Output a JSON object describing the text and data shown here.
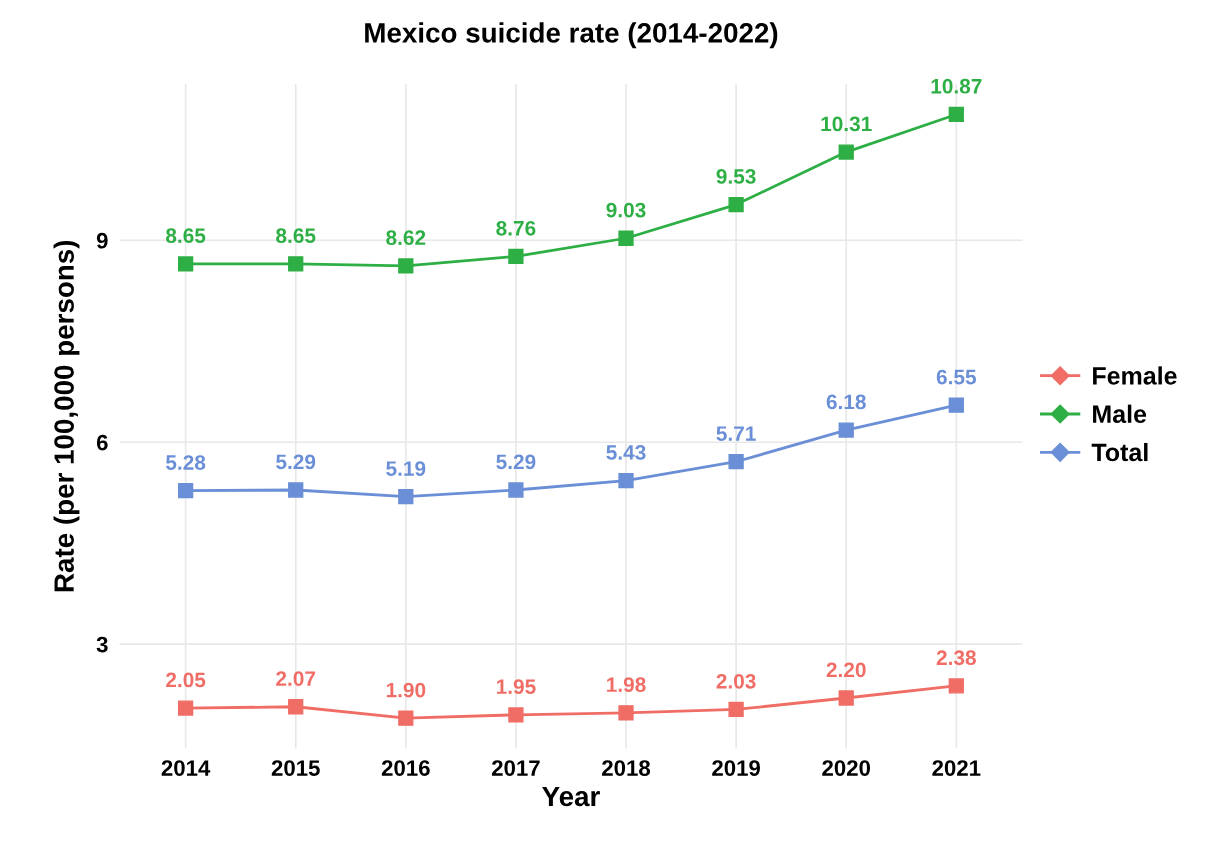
{
  "chart_data": {
    "type": "line",
    "title": "Mexico suicide rate (2014-2022)",
    "xlabel": "Year",
    "ylabel": "Rate (per 100,000 persons)",
    "categories": [
      "2014",
      "2015",
      "2016",
      "2017",
      "2018",
      "2019",
      "2020",
      "2021"
    ],
    "series": [
      {
        "name": "Female",
        "color": "#f06d66",
        "values": [
          2.05,
          2.07,
          1.9,
          1.95,
          1.98,
          2.03,
          2.2,
          2.38
        ],
        "value_labels": [
          "2.05",
          "2.07",
          "1.90",
          "1.95",
          "1.98",
          "2.03",
          "2.20",
          "2.38"
        ]
      },
      {
        "name": "Male",
        "color": "#2eaf45",
        "values": [
          8.65,
          8.65,
          8.62,
          8.76,
          9.03,
          9.53,
          10.31,
          10.87
        ],
        "value_labels": [
          "8.65",
          "8.65",
          "8.62",
          "8.76",
          "9.03",
          "9.53",
          "10.31",
          "10.87"
        ]
      },
      {
        "name": "Total",
        "color": "#6a8fd6",
        "values": [
          5.28,
          5.29,
          5.19,
          5.29,
          5.43,
          5.71,
          6.18,
          6.55
        ],
        "value_labels": [
          "5.28",
          "5.29",
          "5.19",
          "5.29",
          "5.43",
          "5.71",
          "6.18",
          "6.55"
        ]
      }
    ],
    "ylim": [
      1.45,
      11.32
    ],
    "yticks": [
      3,
      6,
      9
    ],
    "grid": true,
    "legend": "right",
    "marker": "square",
    "line_style": "solid"
  }
}
